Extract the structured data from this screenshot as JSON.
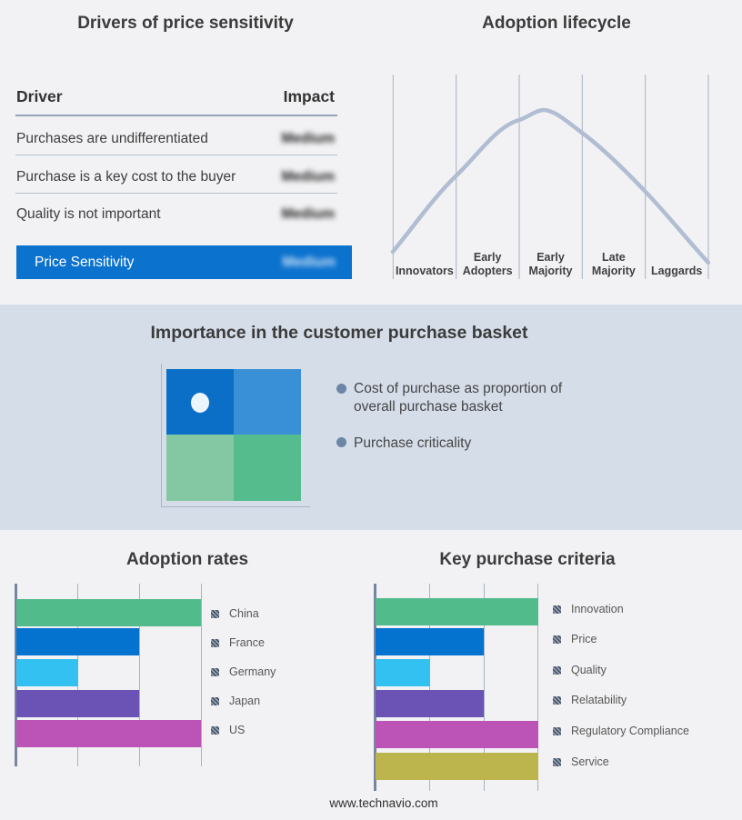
{
  "page": {
    "background": "#f2f2f4",
    "band_background": "#d5dde9",
    "footer": "www.technavio.com"
  },
  "drivers_panel": {
    "title": "Drivers of price sensitivity",
    "columns": {
      "driver": "Driver",
      "impact": "Impact"
    },
    "rows": [
      {
        "driver": "Purchases are undifferentiated",
        "impact": "Medium"
      },
      {
        "driver": "Purchase is a key cost to the buyer",
        "impact": "Medium"
      },
      {
        "driver": "Quality is not important",
        "impact": "Medium"
      }
    ],
    "summary_row": {
      "label": "Price Sensitivity",
      "impact": "Medium",
      "background": "#0b72ce"
    },
    "impact_values_blurred": true
  },
  "lifecycle_panel": {
    "title": "Adoption lifecycle",
    "stages": [
      "Innovators",
      "Early Adopters",
      "Early Majority",
      "Late Majority",
      "Laggards"
    ],
    "curve_color": "#b0bdd2"
  },
  "basket_panel": {
    "title": "Importance in the customer purchase basket",
    "bullets": [
      {
        "lines": [
          "Cost of purchase as proportion of",
          "overall purchase basket"
        ]
      },
      {
        "lines": [
          "Purchase criticality",
          ""
        ]
      }
    ],
    "quadrant_colors": {
      "top_left": "#0c6fc7",
      "top_right": "#3a90d7",
      "bottom_left": "#84c7a3",
      "bottom_right": "#54bc8d",
      "marker": "#edf5fc"
    }
  },
  "adoption_rates": {
    "title": "Adoption rates",
    "items": [
      {
        "label": "China",
        "value": 3,
        "color": "#52bb8c"
      },
      {
        "label": "France",
        "value": 2,
        "color": "#0473cf"
      },
      {
        "label": "Germany",
        "value": 1,
        "color": "#33c1f2"
      },
      {
        "label": "Japan",
        "value": 2,
        "color": "#6a53b4"
      },
      {
        "label": "US",
        "value": 3,
        "color": "#bc53b7"
      }
    ]
  },
  "key_purchase_criteria": {
    "title": "Key purchase criteria",
    "items": [
      {
        "label": "Innovation",
        "value": 3,
        "color": "#52bb8c"
      },
      {
        "label": "Price",
        "value": 2,
        "color": "#0473cf"
      },
      {
        "label": "Quality",
        "value": 1,
        "color": "#33c1f2"
      },
      {
        "label": "Relatability",
        "value": 2,
        "color": "#6a53b4"
      },
      {
        "label": "Regulatory Compliance",
        "value": 3,
        "color": "#bc53b7"
      },
      {
        "label": "Service",
        "value": 3,
        "color": "#bcb44c"
      }
    ]
  },
  "chart_data": [
    {
      "type": "bar",
      "orientation": "horizontal",
      "title": "Adoption rates",
      "categories": [
        "China",
        "France",
        "Germany",
        "Japan",
        "US"
      ],
      "values": [
        3,
        2,
        1,
        2,
        3
      ],
      "xlim": [
        0,
        3
      ],
      "note": "values estimated in gridline units; no numeric axis labels shown",
      "legend_position": "right",
      "grid": true
    },
    {
      "type": "bar",
      "orientation": "horizontal",
      "title": "Key purchase criteria",
      "categories": [
        "Innovation",
        "Price",
        "Quality",
        "Relatability",
        "Regulatory Compliance",
        "Service"
      ],
      "values": [
        3,
        2,
        1,
        2,
        3,
        3
      ],
      "xlim": [
        0,
        3
      ],
      "note": "values estimated in gridline units; no numeric axis labels shown",
      "legend_position": "right",
      "grid": true
    },
    {
      "type": "line",
      "title": "Adoption lifecycle",
      "categories": [
        "Innovators",
        "Early Adopters",
        "Early Majority",
        "Late Majority",
        "Laggards"
      ],
      "shape": "bell curve rising from Innovators, peaking at Early Majority, falling to Laggards",
      "y_axis": "none"
    },
    {
      "type": "table",
      "title": "Drivers of price sensitivity",
      "columns": [
        "Driver",
        "Impact"
      ],
      "rows": [
        [
          "Purchases are undifferentiated",
          "Medium"
        ],
        [
          "Purchase is a key cost to the buyer",
          "Medium"
        ],
        [
          "Quality is not important",
          "Medium"
        ],
        [
          "Price Sensitivity",
          "Medium"
        ]
      ]
    }
  ]
}
